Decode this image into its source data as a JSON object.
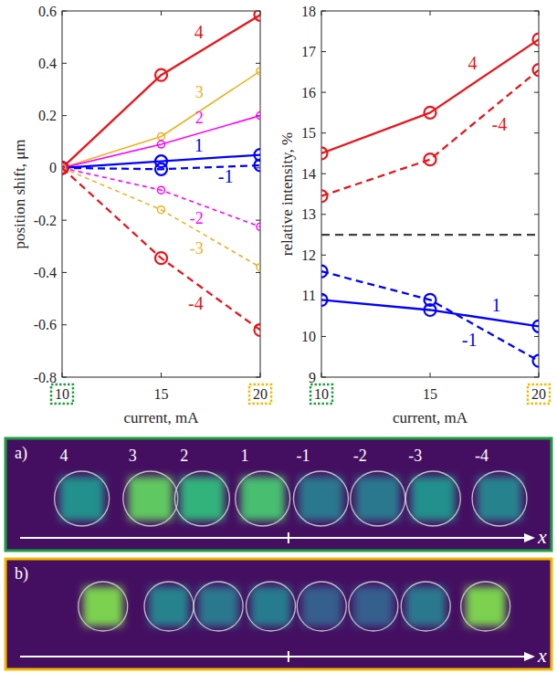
{
  "chart_data": [
    {
      "type": "line",
      "x_label": "current, mA",
      "y_label": "position shift, μm",
      "x": [
        10,
        15,
        20
      ],
      "xlim": [
        10,
        20
      ],
      "xticks": [
        10,
        15,
        20
      ],
      "ylim": [
        -0.8,
        0.6
      ],
      "yticks": [
        -0.8,
        -0.6,
        -0.4,
        -0.2,
        0,
        0.2,
        0.4,
        0.6
      ],
      "grid": false,
      "series": [
        {
          "name": "4",
          "color": "#e8161c",
          "values": [
            0,
            0.355,
            0.585
          ],
          "line_style": "solid",
          "marker": "circle"
        },
        {
          "name": "3",
          "color": "#edb120",
          "values": [
            0,
            0.12,
            0.37
          ],
          "line_style": "solid",
          "marker": "small-circle"
        },
        {
          "name": "2",
          "color": "#ff00ff",
          "values": [
            0,
            0.09,
            0.2
          ],
          "line_style": "solid",
          "marker": "small-circle"
        },
        {
          "name": "1",
          "color": "#0000ff",
          "values": [
            0,
            0.025,
            0.05
          ],
          "line_style": "solid",
          "marker": "circle"
        },
        {
          "name": "-1",
          "color": "#0000ff",
          "values": [
            0,
            -0.005,
            0.01
          ],
          "line_style": "dashed",
          "marker": "circle"
        },
        {
          "name": "-2",
          "color": "#ff00ff",
          "values": [
            0,
            -0.085,
            -0.225
          ],
          "line_style": "dashed",
          "marker": "small-circle"
        },
        {
          "name": "-3",
          "color": "#edb120",
          "values": [
            0,
            -0.16,
            -0.38
          ],
          "line_style": "dashed",
          "marker": "small-circle"
        },
        {
          "name": "-4",
          "color": "#e8161c",
          "values": [
            0,
            -0.345,
            -0.62
          ],
          "line_style": "dashed",
          "marker": "circle"
        }
      ]
    },
    {
      "type": "line",
      "x_label": "current, mA",
      "y_label": "relative intensity, %",
      "x": [
        10,
        15,
        20
      ],
      "xlim": [
        10,
        20
      ],
      "xticks": [
        10,
        15,
        20
      ],
      "ylim": [
        9,
        18
      ],
      "yticks": [
        9,
        10,
        11,
        12,
        13,
        14,
        15,
        16,
        17,
        18
      ],
      "grid": false,
      "reference_value": 12.5,
      "series": [
        {
          "name": "4",
          "color": "#e8161c",
          "values": [
            14.5,
            15.5,
            17.3
          ],
          "line_style": "solid",
          "marker": "circle"
        },
        {
          "name": "-4",
          "color": "#e8161c",
          "values": [
            13.45,
            14.35,
            16.55
          ],
          "line_style": "dashed",
          "marker": "circle"
        },
        {
          "name": "1",
          "color": "#0000ff",
          "values": [
            10.9,
            10.65,
            10.25
          ],
          "line_style": "solid",
          "marker": "circle"
        },
        {
          "name": "-1",
          "color": "#0000ff",
          "values": [
            11.6,
            10.9,
            9.4
          ],
          "line_style": "dashed",
          "marker": "circle"
        }
      ]
    }
  ],
  "images": [
    {
      "label": "a)",
      "current": 10,
      "color": "#1e9e3e",
      "axis_label": "x",
      "xlim": [
        0,
        73.5
      ],
      "xticks": [
        38.1
      ],
      "tick_labels": false,
      "spots": [
        {
          "label": "4",
          "x": 10.1,
          "intensity": 0.5
        },
        {
          "label": "3",
          "x": 19.4,
          "intensity": 0.75
        },
        {
          "label": "2",
          "x": 26.4,
          "intensity": 0.65
        },
        {
          "label": "1",
          "x": 34.6,
          "intensity": 0.7
        },
        {
          "label": "-1",
          "x": 42.5,
          "intensity": 0.4
        },
        {
          "label": "-2",
          "x": 50.2,
          "intensity": 0.4
        },
        {
          "label": "-3",
          "x": 57.7,
          "intensity": 0.5
        },
        {
          "label": "-4",
          "x": 66.7,
          "intensity": 0.45
        }
      ]
    },
    {
      "label": "b)",
      "current": 20,
      "color": "#f5b800",
      "axis_label": "x",
      "xlim": [
        0,
        73.5
      ],
      "xticks": [
        38.1
      ],
      "tick_labels": false,
      "spots": [
        {
          "x": 12.96,
          "intensity": 0.8
        },
        {
          "x": 21.9,
          "intensity": 0.45
        },
        {
          "x": 28.6,
          "intensity": 0.4
        },
        {
          "x": 35.7,
          "intensity": 0.42
        },
        {
          "x": 42.6,
          "intensity": 0.3
        },
        {
          "x": 49.6,
          "intensity": 0.3
        },
        {
          "x": 56.7,
          "intensity": 0.4
        },
        {
          "x": 64.8,
          "intensity": 0.8
        }
      ]
    }
  ]
}
